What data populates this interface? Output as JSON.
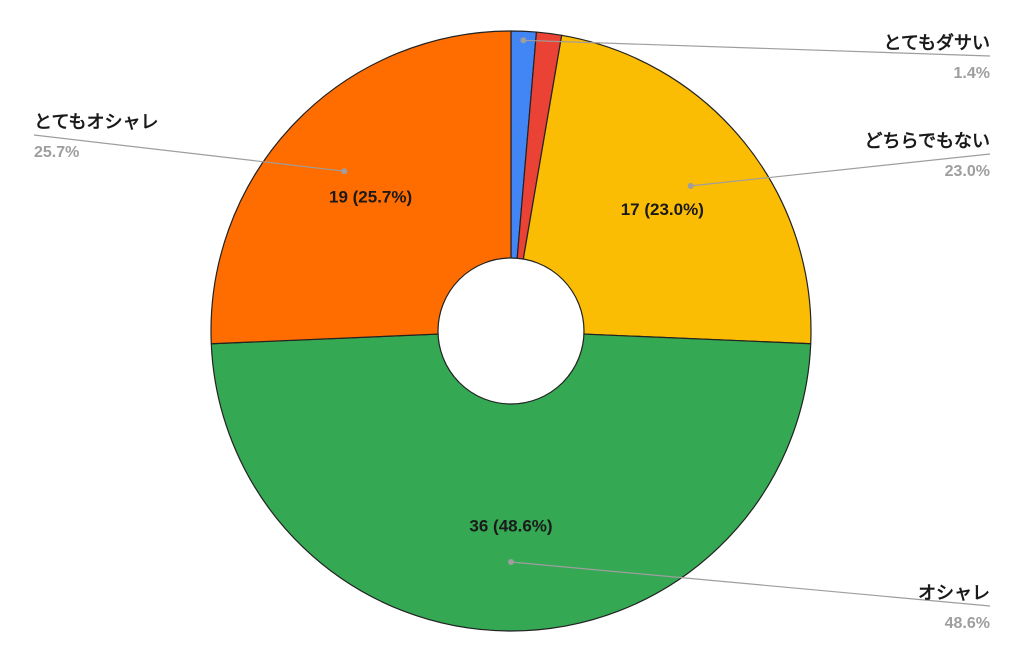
{
  "chart_data": {
    "type": "pie",
    "donut": true,
    "slices": [
      {
        "label": "とてもダサい",
        "value": 1,
        "percent": "1.4%",
        "color": "#4285f4",
        "show_label": false,
        "legend_side": "right"
      },
      {
        "label": "",
        "value": 1,
        "percent": "1.4%",
        "color": "#ea4335",
        "show_label": false,
        "legend_side": "none"
      },
      {
        "label": "どちらでもない",
        "value": 17,
        "percent": "23.0%",
        "color": "#fbbc04",
        "show_label": true,
        "data_label": "17 (23.0%)",
        "legend_side": "right"
      },
      {
        "label": "オシャレ",
        "value": 36,
        "percent": "48.6%",
        "color": "#34a853",
        "show_label": true,
        "data_label": "36 (48.6%)",
        "legend_side": "right"
      },
      {
        "label": "とてもオシャレ",
        "value": 19,
        "percent": "25.7%",
        "color": "#ff6d01",
        "show_label": true,
        "data_label": "19 (25.7%)",
        "legend_side": "left"
      }
    ]
  }
}
